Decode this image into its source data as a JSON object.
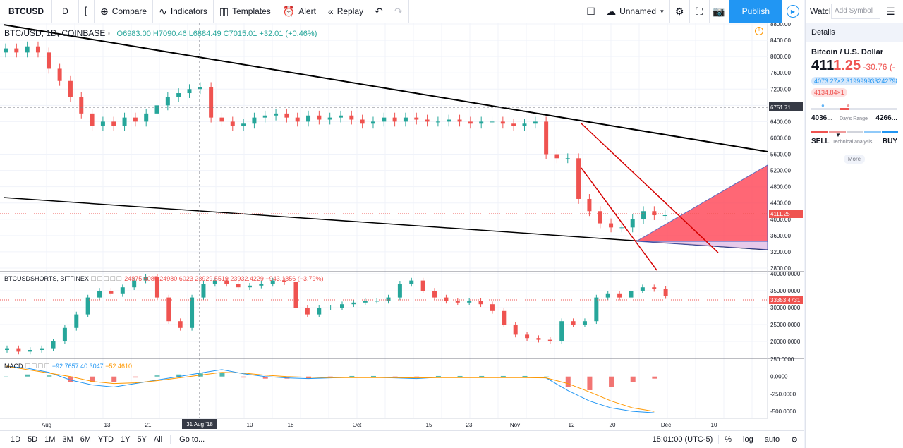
{
  "toolbar": {
    "symbol": "BTCUSD",
    "interval": "D",
    "compare": "Compare",
    "indicators": "Indicators",
    "templates": "Templates",
    "alert": "Alert",
    "replay": "Replay",
    "layout_name": "Unnamed",
    "publish": "Publish"
  },
  "legend": {
    "symbol_line": "BTC/USD, 1D, COINBASE",
    "open": "O6983.00",
    "high": "H7090.46",
    "low": "L6884.49",
    "close": "C7015.01",
    "change": "+32.01 (+0.46%)",
    "sub_symbol": "BTCUSDSHORTS, BITFINEX",
    "sub_values": "24875.6085  24980.6023  23929.5519  23932.4229  −943.1856 (−3.79%)",
    "macd_name": "MACD",
    "macd_v1": "−92.7657",
    "macd_v2": "40.3047",
    "macd_v3": "−52.4610"
  },
  "price_axis": {
    "main_ticks": [
      "8800.00",
      "8400.00",
      "8000.00",
      "7600.00",
      "7200.00",
      "6800.00",
      "6400.00",
      "6000.00",
      "5600.00",
      "5200.00",
      "4800.00",
      "4400.00",
      "4000.00",
      "3600.00",
      "3200.00",
      "2800.00"
    ],
    "crosshair_price": "6751.71",
    "last_price": "4111.25",
    "sub_ticks": [
      "40000.0000",
      "35000.0000",
      "30000.0000",
      "25000.0000",
      "20000.0000"
    ],
    "sub_last": "33353.4731",
    "macd_ticks": [
      "250.0000",
      "0.0000",
      "-250.0000",
      "-500.0000"
    ]
  },
  "time_axis": {
    "labels": [
      "Aug",
      "13",
      "21",
      "10",
      "18",
      "Oct",
      "15",
      "23",
      "Nov",
      "12",
      "20",
      "Dec",
      "10"
    ],
    "crosshair_date": "31 Aug '18"
  },
  "bottombar": {
    "ranges": [
      "1D",
      "5D",
      "1M",
      "3M",
      "6M",
      "YTD",
      "1Y",
      "5Y",
      "All"
    ],
    "goto": "Go to...",
    "time": "15:01:00 (UTC-5)",
    "percent": "%",
    "log": "log",
    "auto": "auto"
  },
  "panel": {
    "watchlist": "Watchlist",
    "add_symbol": "Add Symbol",
    "details": "Details",
    "pair_name": "Bitcoin / U.S. Dollar",
    "price_main": "411",
    "price_tail": "1.25",
    "change": "-30.76 (-",
    "bid": "4073.27×2.319999933242798",
    "ask": "4134.84×1",
    "day_low": "4036...",
    "day_high": "4266...",
    "day_range_label": "Day's Range",
    "sell": "SELL",
    "buy": "BUY",
    "tech_label": "Technical analysis",
    "more": "More"
  },
  "colors": {
    "up": "#26a69a",
    "down": "#ef5350",
    "accent": "#2196f3"
  },
  "chart_data": {
    "type": "candlestick",
    "main": {
      "symbol": "BTC/USD",
      "ylim": [
        2800,
        8800
      ],
      "approx_close": [
        8200,
        8100,
        8250,
        8100,
        7700,
        7400,
        7000,
        6600,
        6300,
        6400,
        6300,
        6500,
        6400,
        6600,
        6800,
        7000,
        7100,
        7200,
        7250,
        6500,
        6400,
        6300,
        6350,
        6500,
        6550,
        6600,
        6500,
        6400,
        6550,
        6450,
        6500,
        6550,
        6450,
        6350,
        6400,
        6500,
        6400,
        6500,
        6450,
        6400,
        6400,
        6450,
        6400,
        6350,
        6400,
        6400,
        6350,
        6300,
        6350,
        6400,
        5600,
        5500,
        5500,
        4500,
        4200,
        3900,
        3800,
        3800,
        4000,
        4200,
        4100,
        4100
      ]
    },
    "sub": {
      "symbol": "BTCUSDSHORTS",
      "ylim": [
        15000,
        40000
      ],
      "approx_close": [
        18000,
        17000,
        17500,
        18000,
        20000,
        24000,
        28000,
        33000,
        35000,
        34000,
        36000,
        38000,
        39000,
        33000,
        26000,
        24000,
        33000,
        37000,
        38000,
        37000,
        36000,
        36500,
        37000,
        38000,
        37500,
        30000,
        28000,
        30000,
        30000,
        31000,
        31500,
        32000,
        32000,
        33000,
        37000,
        38000,
        35000,
        33000,
        32000,
        31500,
        32000,
        31000,
        29000,
        25000,
        22000,
        21000,
        20500,
        20000,
        26000,
        25000,
        26000,
        33000,
        34000,
        33000,
        35000,
        36000,
        35500,
        33400
      ]
    },
    "macd": {
      "ylim": [
        -600,
        250
      ],
      "series": [
        {
          "name": "MACD",
          "values": [
            150,
            120,
            60,
            -50,
            -120,
            -150,
            -100,
            -50,
            0,
            50,
            100,
            40,
            0,
            -20,
            -30,
            -20,
            -10,
            -10,
            -20,
            -30,
            -10,
            -10,
            -10,
            -10,
            -10,
            -20,
            -200,
            -350,
            -450,
            -500,
            -520
          ]
        },
        {
          "name": "Signal",
          "values": [
            150,
            100,
            50,
            0,
            -70,
            -100,
            -90,
            -60,
            -20,
            20,
            60,
            50,
            20,
            0,
            -10,
            -15,
            -15,
            -15,
            -15,
            -20,
            -15,
            -15,
            -15,
            -15,
            -15,
            -20,
            -100,
            -220,
            -350,
            -450,
            -500
          ]
        }
      ]
    }
  }
}
